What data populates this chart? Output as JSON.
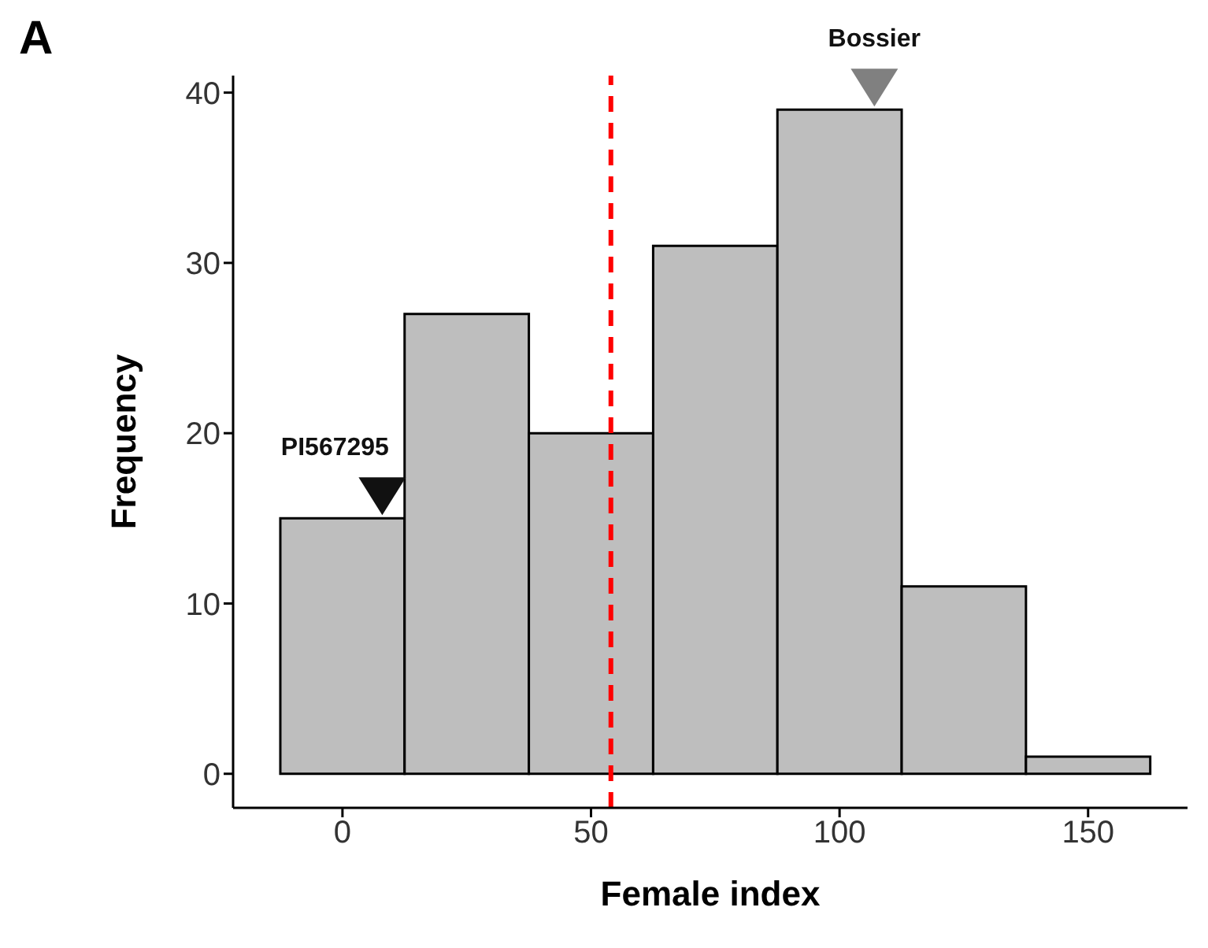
{
  "chart_data": {
    "type": "histogram",
    "title": "A",
    "xlabel": "Female index",
    "ylabel": "Frequency",
    "bins": [
      -12.5,
      12.5,
      37.5,
      62.5,
      87.5,
      112.5,
      137.5,
      162.5
    ],
    "values": [
      15,
      27,
      20,
      31,
      39,
      11,
      1
    ],
    "color": "#bebebe",
    "xlim": [
      -22,
      170
    ],
    "xticks": [
      0,
      50,
      100,
      150
    ],
    "ylim": [
      -2,
      41
    ],
    "yticks": [
      0,
      10,
      20,
      30,
      40
    ],
    "grid": false,
    "ref_lines": [
      {
        "axis": "x",
        "value": 54,
        "color": "#ff0000",
        "line_style": "dashed"
      }
    ],
    "annotations": [
      {
        "text": "PI567295",
        "x": 8,
        "y": 15
      },
      {
        "text": "Bossier",
        "x": 107,
        "y": 39
      }
    ]
  }
}
